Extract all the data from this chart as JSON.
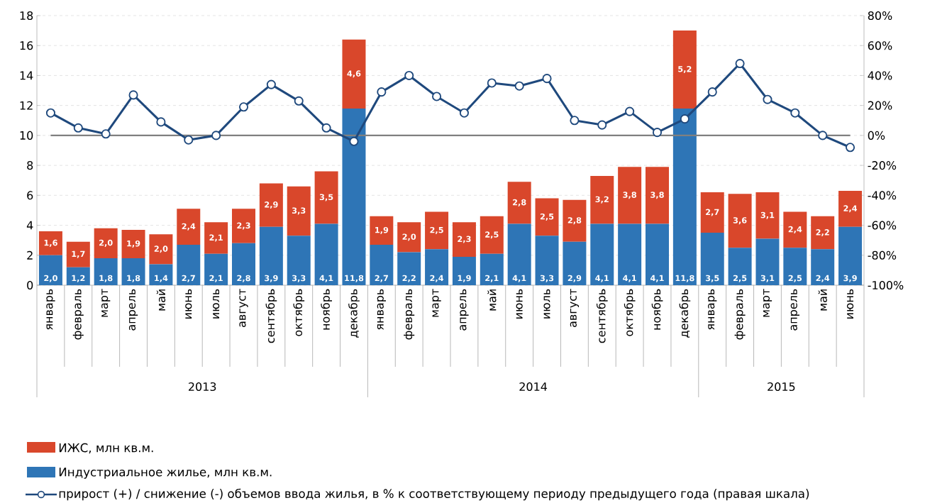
{
  "chart_data": {
    "type": "bar",
    "stacked": true,
    "categories": [
      "январь",
      "февраль",
      "март",
      "апрель",
      "май",
      "июнь",
      "июль",
      "август",
      "сентябрь",
      "октябрь",
      "ноябрь",
      "декабрь",
      "январь",
      "февраль",
      "март",
      "апрель",
      "май",
      "июнь",
      "июль",
      "август",
      "сентябрь",
      "октябрь",
      "ноябрь",
      "декабрь",
      "январь",
      "февраль",
      "март",
      "апрель",
      "май",
      "июнь"
    ],
    "series": [
      {
        "name": "Индустриальное жилье, млн кв.м.",
        "color": "#2e75b6",
        "values": [
          2.0,
          1.2,
          1.8,
          1.8,
          1.4,
          2.7,
          2.1,
          2.8,
          3.9,
          3.3,
          4.1,
          11.8,
          2.7,
          2.2,
          2.4,
          1.9,
          2.1,
          4.1,
          3.3,
          2.9,
          4.1,
          4.1,
          4.1,
          11.8,
          3.5,
          2.5,
          3.1,
          2.5,
          2.4,
          3.9
        ],
        "value_labels": [
          "2,0",
          "1,2",
          "1,8",
          "1,8",
          "1,4",
          "2,7",
          "2,1",
          "2,8",
          "3,9",
          "3,3",
          "4,1",
          "11,8",
          "2,7",
          "2,2",
          "2,4",
          "1,9",
          "2,1",
          "4,1",
          "3,3",
          "2,9",
          "4,1",
          "4,1",
          "4,1",
          "11,8",
          "3,5",
          "2,5",
          "3,1",
          "2,5",
          "2,4",
          "3,9"
        ]
      },
      {
        "name": "ИЖС, млн кв.м.",
        "color": "#d9472b",
        "values": [
          1.6,
          1.7,
          2.0,
          1.9,
          2.0,
          2.4,
          2.1,
          2.3,
          2.9,
          3.3,
          3.5,
          4.6,
          1.9,
          2.0,
          2.5,
          2.3,
          2.5,
          2.8,
          2.5,
          2.8,
          3.2,
          3.8,
          3.8,
          5.2,
          2.7,
          3.6,
          3.1,
          2.4,
          2.2,
          2.4
        ],
        "value_labels": [
          "1,6",
          "1,7",
          "2,0",
          "1,9",
          "2,0",
          "2,4",
          "2,1",
          "2,3",
          "2,9",
          "3,3",
          "3,5",
          "4,6",
          "1,9",
          "2,0",
          "2,5",
          "2,3",
          "2,5",
          "2,8",
          "2,5",
          "2,8",
          "3,2",
          "3,8",
          "3,8",
          "5,2",
          "2,7",
          "3,6",
          "3,1",
          "2,4",
          "2,2",
          "2,4"
        ]
      },
      {
        "name": "прирост (+) / снижение (-) объемов ввода жилья, в % к соответствующему периоду предыдущего года (правая шкала)",
        "type": "line",
        "axis": "y2",
        "color": "#1f497d",
        "marker": "circle",
        "values": [
          15,
          5,
          1,
          27,
          9,
          -3,
          0,
          19,
          34,
          23,
          5,
          -4,
          29,
          40,
          26,
          15,
          35,
          33,
          38,
          10,
          7,
          16,
          2,
          11,
          29,
          48,
          24,
          15,
          0,
          -8
        ]
      }
    ],
    "ylim": [
      0,
      18
    ],
    "yticks": [
      0,
      2,
      4,
      6,
      8,
      10,
      12,
      14,
      16,
      18
    ],
    "y2lim": [
      -100,
      80
    ],
    "y2ticks": [
      {
        "value": -100,
        "label": "-100%"
      },
      {
        "value": -80,
        "label": "-80%"
      },
      {
        "value": -60,
        "label": "-60%"
      },
      {
        "value": -40,
        "label": "-40%"
      },
      {
        "value": -20,
        "label": "-20%"
      },
      {
        "value": 0,
        "label": "0%"
      },
      {
        "value": 20,
        "label": "20%"
      },
      {
        "value": 40,
        "label": "40%"
      },
      {
        "value": 60,
        "label": "60%"
      },
      {
        "value": 80,
        "label": "80%"
      }
    ],
    "grid": "y",
    "legend": "bottom",
    "ref_lines": [
      {
        "axis": "y2",
        "value": 0,
        "color": "#808080"
      }
    ],
    "annotations": [
      "2013",
      "2014",
      "2015"
    ]
  }
}
